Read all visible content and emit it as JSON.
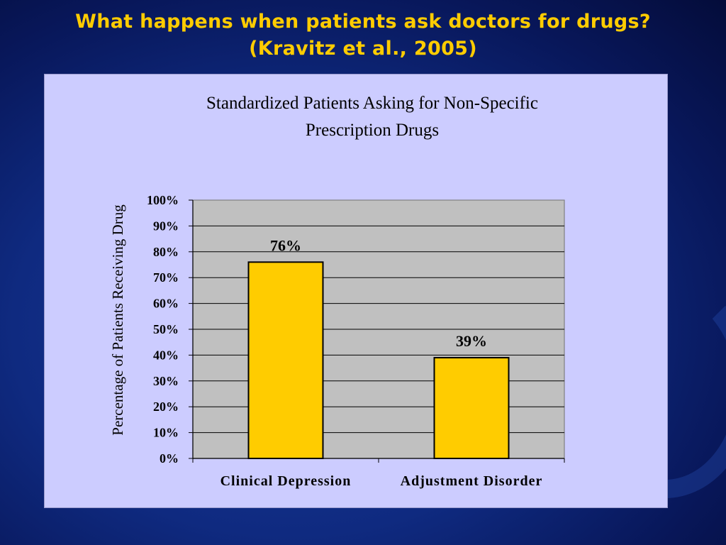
{
  "slide": {
    "title_line1": "What happens when patients ask doctors for drugs?",
    "title_line2": "(Kravitz et al., 2005)"
  },
  "colors": {
    "title": "#ffcc00",
    "bar_fill": "#ffcc00",
    "plot_background": "#c0c0c0",
    "panel_background": "#ccccff"
  },
  "chart_data": {
    "type": "bar",
    "title_line1": "Standardized Patients Asking for Non-Specific",
    "title_line2": "Prescription Drugs",
    "xlabel": "",
    "ylabel": "Percentage of Patients Receiving Drug",
    "categories": [
      "Clinical Depression",
      "Adjustment Disorder"
    ],
    "values": [
      76,
      39
    ],
    "data_labels": [
      "76%",
      "39%"
    ],
    "yticks": [
      "0%",
      "10%",
      "20%",
      "30%",
      "40%",
      "50%",
      "60%",
      "70%",
      "80%",
      "90%",
      "100%"
    ],
    "ylim": [
      0,
      100
    ],
    "grid": true,
    "legend": "none"
  }
}
